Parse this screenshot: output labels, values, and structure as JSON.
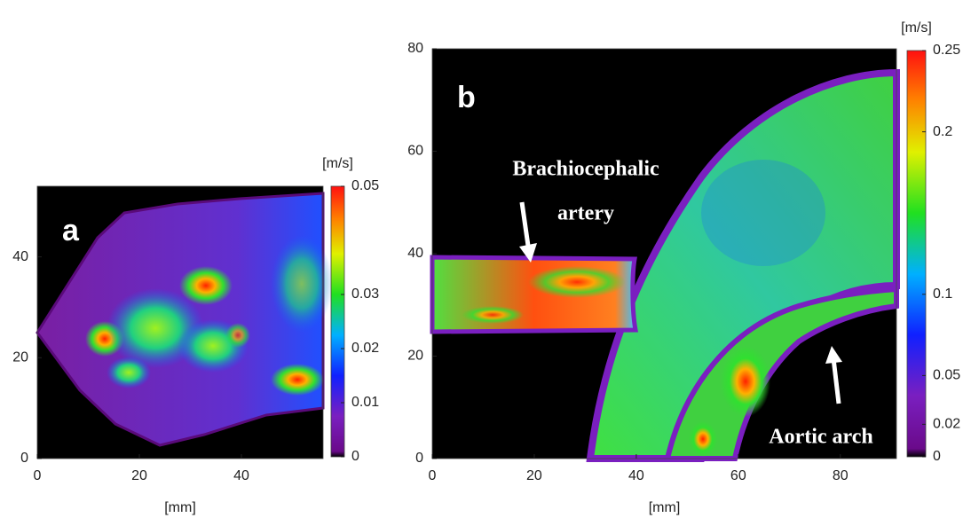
{
  "chart_data": [
    {
      "type": "heatmap",
      "panel_label": "a",
      "xlabel": "[mm]",
      "xlim": [
        0,
        56
      ],
      "xticks": [
        0,
        20,
        40
      ],
      "ylim": [
        0,
        54
      ],
      "yticks": [
        0,
        20,
        40
      ],
      "colorbar": {
        "label": "[m/s]",
        "lim": [
          0,
          0.05
        ],
        "ticks": [
          0,
          0.01,
          0.02,
          0.03,
          0.05
        ]
      }
    },
    {
      "type": "heatmap",
      "panel_label": "b",
      "xlabel": "[mm]",
      "xlim": [
        0,
        91
      ],
      "xticks": [
        0,
        20,
        40,
        60,
        80
      ],
      "ylim": [
        0,
        80
      ],
      "yticks": [
        0,
        20,
        40,
        60,
        80
      ],
      "colorbar": {
        "label": "[m/s]",
        "lim": [
          0,
          0.25
        ],
        "ticks": [
          0,
          0.02,
          0.05,
          0.1,
          0.2,
          0.25
        ]
      },
      "annotations": [
        "Brachiocephalic",
        "artery",
        "Aortic arch"
      ]
    }
  ]
}
